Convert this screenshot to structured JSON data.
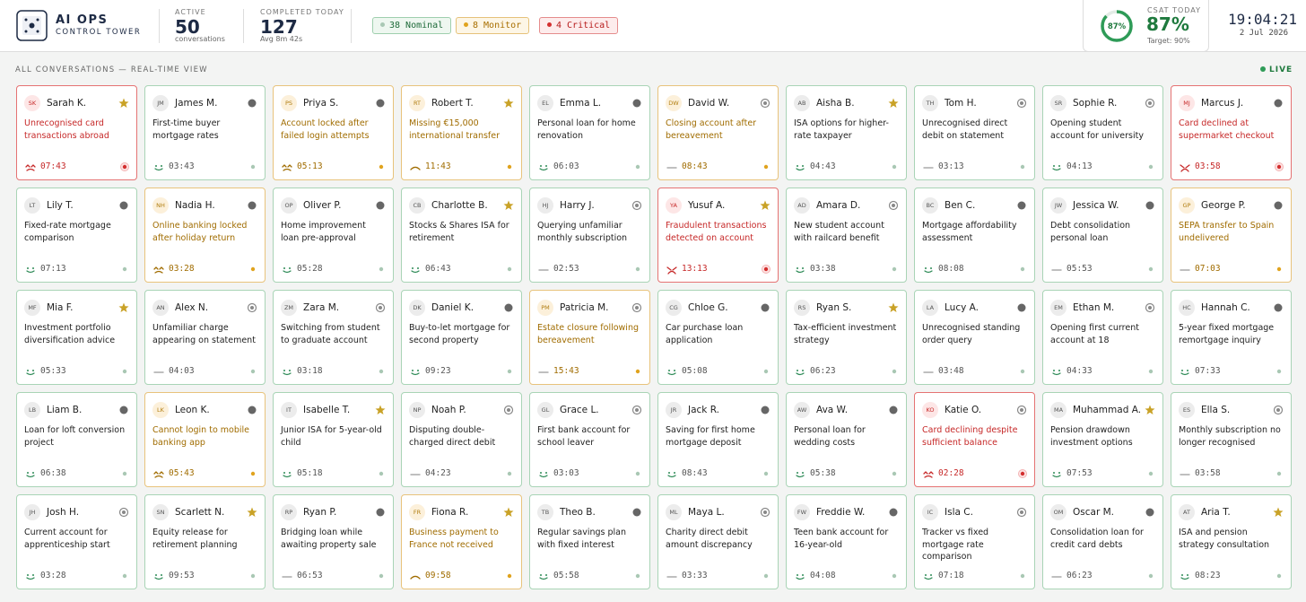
{
  "header": {
    "brand": "AI OPS",
    "subbrand": "CONTROL TOWER",
    "active": {
      "label": "ACTIVE",
      "value": "50",
      "sub": "conversations"
    },
    "completed": {
      "label": "COMPLETED TODAY",
      "value": "127",
      "sub": "Avg 8m 42s"
    },
    "pills": [
      {
        "text": "38 Nominal",
        "status": "nominal"
      },
      {
        "text": "8 Monitor",
        "status": "monitor"
      },
      {
        "text": "4 Critical",
        "status": "critical"
      }
    ],
    "csat": {
      "label": "CSAT TODAY",
      "value": 87,
      "value_label": "87%",
      "target": "Target: 90%"
    },
    "clock": "19:04:21",
    "date": "2 Jul 2026"
  },
  "section": {
    "title": "ALL CONVERSATIONS — REAL-TIME VIEW",
    "live": "LIVE"
  },
  "conversations": [
    {
      "initials": "SK",
      "name": "Sarah K.",
      "topic": "Unrecognised card transactions abroad",
      "time": "07:43",
      "status": "critical",
      "marker": "star",
      "mood": "frown"
    },
    {
      "initials": "JM",
      "name": "James M.",
      "topic": "First-time buyer mortgage rates",
      "time": "03:43",
      "status": "nominal",
      "marker": "dot",
      "mood": "smile"
    },
    {
      "initials": "PS",
      "name": "Priya S.",
      "topic": "Account locked after failed login attempts",
      "time": "05:13",
      "status": "monitor",
      "marker": "dot",
      "mood": "frown"
    },
    {
      "initials": "RT",
      "name": "Robert T.",
      "topic": "Missing €15,000 international transfer",
      "time": "11:43",
      "status": "monitor",
      "marker": "star",
      "mood": "meh"
    },
    {
      "initials": "EL",
      "name": "Emma L.",
      "topic": "Personal loan for home renovation",
      "time": "06:03",
      "status": "nominal",
      "marker": "dot",
      "mood": "smile"
    },
    {
      "initials": "DW",
      "name": "David W.",
      "topic": "Closing account after bereavement",
      "time": "08:43",
      "status": "monitor",
      "marker": "ring",
      "mood": "neutral"
    },
    {
      "initials": "AB",
      "name": "Aisha B.",
      "topic": "ISA options for higher-rate taxpayer",
      "time": "04:43",
      "status": "nominal",
      "marker": "star",
      "mood": "smile"
    },
    {
      "initials": "TH",
      "name": "Tom H.",
      "topic": "Unrecognised direct debit on statement",
      "time": "03:13",
      "status": "nominal",
      "marker": "ring",
      "mood": "neutral"
    },
    {
      "initials": "SR",
      "name": "Sophie R.",
      "topic": "Opening student account for university",
      "time": "04:13",
      "status": "nominal",
      "marker": "ring",
      "mood": "smile"
    },
    {
      "initials": "MJ",
      "name": "Marcus J.",
      "topic": "Card declined at supermarket checkout",
      "time": "03:58",
      "status": "critical",
      "marker": "dot",
      "mood": "angry"
    },
    {
      "initials": "LT",
      "name": "Lily T.",
      "topic": "Fixed-rate mortgage comparison",
      "time": "07:13",
      "status": "nominal",
      "marker": "dot",
      "mood": "smile"
    },
    {
      "initials": "NH",
      "name": "Nadia H.",
      "topic": "Online banking locked after holiday return",
      "time": "03:28",
      "status": "monitor",
      "marker": "dot",
      "mood": "frown"
    },
    {
      "initials": "OP",
      "name": "Oliver P.",
      "topic": "Home improvement loan pre-approval",
      "time": "05:28",
      "status": "nominal",
      "marker": "dot",
      "mood": "smile"
    },
    {
      "initials": "CB",
      "name": "Charlotte B.",
      "topic": "Stocks & Shares ISA for retirement",
      "time": "06:43",
      "status": "nominal",
      "marker": "star",
      "mood": "smile"
    },
    {
      "initials": "HJ",
      "name": "Harry J.",
      "topic": "Querying unfamiliar monthly subscription",
      "time": "02:53",
      "status": "nominal",
      "marker": "ring",
      "mood": "neutral"
    },
    {
      "initials": "YA",
      "name": "Yusuf A.",
      "topic": "Fraudulent transactions detected on account",
      "time": "13:13",
      "status": "critical",
      "marker": "star",
      "mood": "angry"
    },
    {
      "initials": "AD",
      "name": "Amara D.",
      "topic": "New student account with railcard benefit",
      "time": "03:38",
      "status": "nominal",
      "marker": "ring",
      "mood": "smile"
    },
    {
      "initials": "BC",
      "name": "Ben C.",
      "topic": "Mortgage affordability assessment",
      "time": "08:08",
      "status": "nominal",
      "marker": "dot",
      "mood": "smile"
    },
    {
      "initials": "JW",
      "name": "Jessica W.",
      "topic": "Debt consolidation personal loan",
      "time": "05:53",
      "status": "nominal",
      "marker": "dot",
      "mood": "neutral"
    },
    {
      "initials": "GP",
      "name": "George P.",
      "topic": "SEPA transfer to Spain undelivered",
      "time": "07:03",
      "status": "monitor",
      "marker": "dot",
      "mood": "neutral"
    },
    {
      "initials": "MF",
      "name": "Mia F.",
      "topic": "Investment portfolio diversification advice",
      "time": "05:33",
      "status": "nominal",
      "marker": "star",
      "mood": "smile"
    },
    {
      "initials": "AN",
      "name": "Alex N.",
      "topic": "Unfamiliar charge appearing on statement",
      "time": "04:03",
      "status": "nominal",
      "marker": "ring",
      "mood": "neutral"
    },
    {
      "initials": "ZM",
      "name": "Zara M.",
      "topic": "Switching from student to graduate account",
      "time": "03:18",
      "status": "nominal",
      "marker": "ring",
      "mood": "smile"
    },
    {
      "initials": "DK",
      "name": "Daniel K.",
      "topic": "Buy-to-let mortgage for second property",
      "time": "09:23",
      "status": "nominal",
      "marker": "dot",
      "mood": "smile"
    },
    {
      "initials": "PM",
      "name": "Patricia M.",
      "topic": "Estate closure following bereavement",
      "time": "15:43",
      "status": "monitor",
      "marker": "ring",
      "mood": "neutral"
    },
    {
      "initials": "CG",
      "name": "Chloe G.",
      "topic": "Car purchase loan application",
      "time": "05:08",
      "status": "nominal",
      "marker": "dot",
      "mood": "smile"
    },
    {
      "initials": "RS",
      "name": "Ryan S.",
      "topic": "Tax-efficient investment strategy",
      "time": "06:23",
      "status": "nominal",
      "marker": "star",
      "mood": "smile"
    },
    {
      "initials": "LA",
      "name": "Lucy A.",
      "topic": "Unrecognised standing order query",
      "time": "03:48",
      "status": "nominal",
      "marker": "dot",
      "mood": "neutral"
    },
    {
      "initials": "EM",
      "name": "Ethan M.",
      "topic": "Opening first current account at 18",
      "time": "04:33",
      "status": "nominal",
      "marker": "ring",
      "mood": "smile"
    },
    {
      "initials": "HC",
      "name": "Hannah C.",
      "topic": "5-year fixed mortgage remortgage inquiry",
      "time": "07:33",
      "status": "nominal",
      "marker": "dot",
      "mood": "smile"
    },
    {
      "initials": "LB",
      "name": "Liam B.",
      "topic": "Loan for loft conversion project",
      "time": "06:38",
      "status": "nominal",
      "marker": "dot",
      "mood": "smile"
    },
    {
      "initials": "LK",
      "name": "Leon K.",
      "topic": "Cannot login to mobile banking app",
      "time": "05:43",
      "status": "monitor",
      "marker": "dot",
      "mood": "frown"
    },
    {
      "initials": "IT",
      "name": "Isabelle T.",
      "topic": "Junior ISA for 5-year-old child",
      "time": "05:18",
      "status": "nominal",
      "marker": "star",
      "mood": "smile"
    },
    {
      "initials": "NP",
      "name": "Noah P.",
      "topic": "Disputing double-charged direct debit",
      "time": "04:23",
      "status": "nominal",
      "marker": "ring",
      "mood": "neutral"
    },
    {
      "initials": "GL",
      "name": "Grace L.",
      "topic": "First bank account for school leaver",
      "time": "03:03",
      "status": "nominal",
      "marker": "ring",
      "mood": "smile"
    },
    {
      "initials": "JR",
      "name": "Jack R.",
      "topic": "Saving for first home mortgage deposit",
      "time": "08:43",
      "status": "nominal",
      "marker": "dot",
      "mood": "smile"
    },
    {
      "initials": "AW",
      "name": "Ava W.",
      "topic": "Personal loan for wedding costs",
      "time": "05:38",
      "status": "nominal",
      "marker": "dot",
      "mood": "smile"
    },
    {
      "initials": "KO",
      "name": "Katie O.",
      "topic": "Card declining despite sufficient balance",
      "time": "02:28",
      "status": "critical",
      "marker": "ring",
      "mood": "frown"
    },
    {
      "initials": "MA",
      "name": "Muhammad A.",
      "topic": "Pension drawdown investment options",
      "time": "07:53",
      "status": "nominal",
      "marker": "star",
      "mood": "smile"
    },
    {
      "initials": "ES",
      "name": "Ella S.",
      "topic": "Monthly subscription no longer recognised",
      "time": "03:58",
      "status": "nominal",
      "marker": "ring",
      "mood": "neutral"
    },
    {
      "initials": "JH",
      "name": "Josh H.",
      "topic": "Current account for apprenticeship start",
      "time": "03:28",
      "status": "nominal",
      "marker": "ring",
      "mood": "smile"
    },
    {
      "initials": "SN",
      "name": "Scarlett N.",
      "topic": "Equity release for retirement planning",
      "time": "09:53",
      "status": "nominal",
      "marker": "star",
      "mood": "smile"
    },
    {
      "initials": "RP",
      "name": "Ryan P.",
      "topic": "Bridging loan while awaiting property sale",
      "time": "06:53",
      "status": "nominal",
      "marker": "dot",
      "mood": "neutral"
    },
    {
      "initials": "FR",
      "name": "Fiona R.",
      "topic": "Business payment to France not received",
      "time": "09:58",
      "status": "monitor",
      "marker": "star",
      "mood": "meh"
    },
    {
      "initials": "TB",
      "name": "Theo B.",
      "topic": "Regular savings plan with fixed interest",
      "time": "05:58",
      "status": "nominal",
      "marker": "dot",
      "mood": "smile"
    },
    {
      "initials": "ML",
      "name": "Maya L.",
      "topic": "Charity direct debit amount discrepancy",
      "time": "03:33",
      "status": "nominal",
      "marker": "ring",
      "mood": "neutral"
    },
    {
      "initials": "FW",
      "name": "Freddie W.",
      "topic": "Teen bank account for 16-year-old",
      "time": "04:08",
      "status": "nominal",
      "marker": "dot",
      "mood": "smile"
    },
    {
      "initials": "IC",
      "name": "Isla C.",
      "topic": "Tracker vs fixed mortgage rate comparison",
      "time": "07:18",
      "status": "nominal",
      "marker": "ring",
      "mood": "smile"
    },
    {
      "initials": "OM",
      "name": "Oscar M.",
      "topic": "Consolidation loan for credit card debts",
      "time": "06:23",
      "status": "nominal",
      "marker": "dot",
      "mood": "neutral"
    },
    {
      "initials": "AT",
      "name": "Aria T.",
      "topic": "ISA and pension strategy consultation",
      "time": "08:23",
      "status": "nominal",
      "marker": "star",
      "mood": "smile"
    }
  ]
}
